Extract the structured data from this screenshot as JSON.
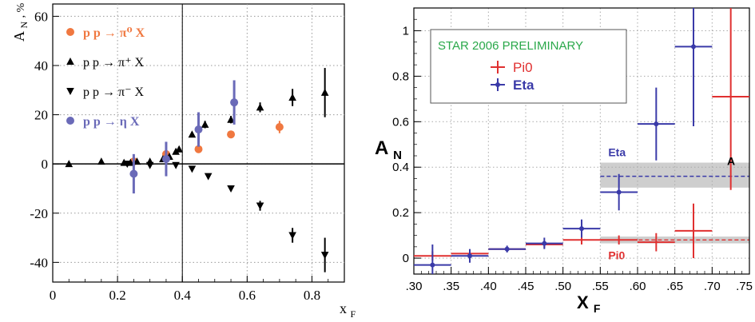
{
  "chart_data": [
    {
      "type": "scatter",
      "xlabel": "x",
      "xlabel_sub": "F",
      "ylabel": "A",
      "ylabel_sub": "N",
      "ylabel_unit": ", %",
      "xlim": [
        0,
        0.9
      ],
      "ylim": [
        -48,
        65
      ],
      "x_ticks": [
        0,
        0.2,
        0.4,
        0.6,
        0.8
      ],
      "x_tick_labels": [
        "0",
        "0.2",
        "0.4",
        "0.6",
        "0.8"
      ],
      "y_ticks": [
        -40,
        -20,
        0,
        20,
        40,
        60
      ],
      "y_tick_labels": [
        "-40",
        "-20",
        "0",
        "20",
        "40",
        "60"
      ],
      "grid": "dotted",
      "legend_position": "top-left",
      "legend": [
        {
          "label": "p p → π⁰ X",
          "color": "#f07840",
          "marker": "circle"
        },
        {
          "label": "p p → π⁺ X",
          "color": "#000000",
          "marker": "triangle-up"
        },
        {
          "label": "p p → π⁻ X",
          "color": "#000000",
          "marker": "triangle-down"
        },
        {
          "label": "p p → η X",
          "color": "#6a6ab8",
          "marker": "circle"
        }
      ],
      "series": [
        {
          "name": "p p → π⁰ X",
          "color": "#f07840",
          "marker": "circle",
          "points": [
            {
              "x": 0.25,
              "y": 1,
              "err": 1.5
            },
            {
              "x": 0.35,
              "y": 4,
              "err": 1.5
            },
            {
              "x": 0.45,
              "y": 6,
              "err": 1.5
            },
            {
              "x": 0.55,
              "y": 12,
              "err": 1.5
            },
            {
              "x": 0.7,
              "y": 15,
              "err": 2.5
            }
          ]
        },
        {
          "name": "p p → π⁺ X",
          "color": "#000000",
          "marker": "triangle-up",
          "points": [
            {
              "x": 0.05,
              "y": 0,
              "err": 0.8
            },
            {
              "x": 0.15,
              "y": 1,
              "err": 0.8
            },
            {
              "x": 0.22,
              "y": 0.5,
              "err": 0.8
            },
            {
              "x": 0.24,
              "y": 0.5,
              "err": 0.8
            },
            {
              "x": 0.26,
              "y": 1,
              "err": 0.8
            },
            {
              "x": 0.3,
              "y": 1,
              "err": 0.8
            },
            {
              "x": 0.34,
              "y": 2,
              "err": 0.8
            },
            {
              "x": 0.36,
              "y": 3,
              "err": 0.8
            },
            {
              "x": 0.38,
              "y": 5,
              "err": 1
            },
            {
              "x": 0.39,
              "y": 6,
              "err": 1
            },
            {
              "x": 0.43,
              "y": 12,
              "err": 1
            },
            {
              "x": 0.47,
              "y": 16,
              "err": 1.5
            },
            {
              "x": 0.55,
              "y": 18,
              "err": 1.5
            },
            {
              "x": 0.64,
              "y": 23,
              "err": 2
            },
            {
              "x": 0.74,
              "y": 27,
              "err": 3.5
            },
            {
              "x": 0.84,
              "y": 29,
              "err": 10
            }
          ]
        },
        {
          "name": "p p → π⁻ X",
          "color": "#000000",
          "marker": "triangle-down",
          "points": [
            {
              "x": 0.23,
              "y": 0,
              "err": 0.8
            },
            {
              "x": 0.3,
              "y": -0.5,
              "err": 0.8
            },
            {
              "x": 0.38,
              "y": -0.5,
              "err": 0.8
            },
            {
              "x": 0.43,
              "y": -2,
              "err": 0.8
            },
            {
              "x": 0.48,
              "y": -5,
              "err": 1
            },
            {
              "x": 0.55,
              "y": -10,
              "err": 1
            },
            {
              "x": 0.64,
              "y": -17,
              "err": 2
            },
            {
              "x": 0.74,
              "y": -29,
              "err": 3
            },
            {
              "x": 0.84,
              "y": -37,
              "err": 7
            }
          ]
        },
        {
          "name": "p p → η X",
          "color": "#6a6ab8",
          "marker": "circle",
          "points": [
            {
              "x": 0.25,
              "y": -4,
              "err": 8
            },
            {
              "x": 0.35,
              "y": 2,
              "err": 7
            },
            {
              "x": 0.45,
              "y": 14,
              "err": 7
            },
            {
              "x": 0.56,
              "y": 25,
              "err": 9
            }
          ]
        }
      ]
    },
    {
      "type": "scatter",
      "annotation": "STAR 2006 PRELIMINARY",
      "annotation_color": "#2aa84a",
      "xlabel": "X",
      "xlabel_sub": "F",
      "ylabel": "A",
      "ylabel_sub": "N",
      "xlim": [
        0.3,
        0.75
      ],
      "ylim": [
        -0.07,
        1.1
      ],
      "x_ticks": [
        0.3,
        0.35,
        0.4,
        0.45,
        0.5,
        0.55,
        0.6,
        0.65,
        0.7,
        0.75
      ],
      "x_tick_labels": [
        ".30",
        ".35",
        ".40",
        ".45",
        ".50",
        ".55",
        ".60",
        ".65",
        ".70",
        ".75"
      ],
      "y_ticks": [
        0,
        0.2,
        0.4,
        0.6,
        0.8,
        1.0
      ],
      "y_tick_labels": [
        "0",
        "0.2",
        "0.4",
        "0.6",
        "0.8",
        "1"
      ],
      "grid": "dotted",
      "legend_position": "top-left",
      "legend": [
        {
          "label": "Pi0",
          "color": "#e03030"
        },
        {
          "label": "Eta",
          "color": "#3a3aa8"
        }
      ],
      "bands": [
        {
          "label": "Eta",
          "label_color": "#3a3aa8",
          "x0": 0.55,
          "x1": 0.75,
          "y": 0.36,
          "y0": 0.31,
          "y1": 0.42,
          "color": "#3a3aa8"
        },
        {
          "label": "Pi0",
          "label_color": "#e03030",
          "x0": 0.55,
          "x1": 0.75,
          "y": 0.08,
          "y0": 0.065,
          "y1": 0.095,
          "color": "#e03030"
        }
      ],
      "edge_label": "A",
      "series": [
        {
          "name": "Pi0",
          "color": "#e03030",
          "points": [
            {
              "x": 0.325,
              "y": 0.01,
              "xerr": 0.025,
              "err": 0.02
            },
            {
              "x": 0.375,
              "y": 0.02,
              "xerr": 0.025,
              "err": 0.01
            },
            {
              "x": 0.425,
              "y": 0.04,
              "xerr": 0.025,
              "err": 0.01
            },
            {
              "x": 0.475,
              "y": 0.06,
              "xerr": 0.025,
              "err": 0.015
            },
            {
              "x": 0.525,
              "y": 0.08,
              "xerr": 0.025,
              "err": 0.02
            },
            {
              "x": 0.575,
              "y": 0.08,
              "xerr": 0.025,
              "err": 0.02
            },
            {
              "x": 0.625,
              "y": 0.07,
              "xerr": 0.025,
              "err": 0.04
            },
            {
              "x": 0.675,
              "y": 0.12,
              "xerr": 0.025,
              "err": 0.12
            },
            {
              "x": 0.725,
              "y": 0.71,
              "xerr": 0.025,
              "err": 0.41
            }
          ]
        },
        {
          "name": "Eta",
          "color": "#3a3aa8",
          "points": [
            {
              "x": 0.325,
              "y": -0.03,
              "xerr": 0.025,
              "err": 0.09
            },
            {
              "x": 0.375,
              "y": 0.01,
              "xerr": 0.025,
              "err": 0.03
            },
            {
              "x": 0.425,
              "y": 0.04,
              "xerr": 0.025,
              "err": 0.015
            },
            {
              "x": 0.475,
              "y": 0.065,
              "xerr": 0.025,
              "err": 0.025
            },
            {
              "x": 0.525,
              "y": 0.13,
              "xerr": 0.025,
              "err": 0.04
            },
            {
              "x": 0.575,
              "y": 0.29,
              "xerr": 0.025,
              "err": 0.08
            },
            {
              "x": 0.625,
              "y": 0.59,
              "xerr": 0.025,
              "err": 0.16
            },
            {
              "x": 0.675,
              "y": 0.93,
              "xerr": 0.025,
              "err": 0.35
            }
          ]
        }
      ]
    }
  ]
}
